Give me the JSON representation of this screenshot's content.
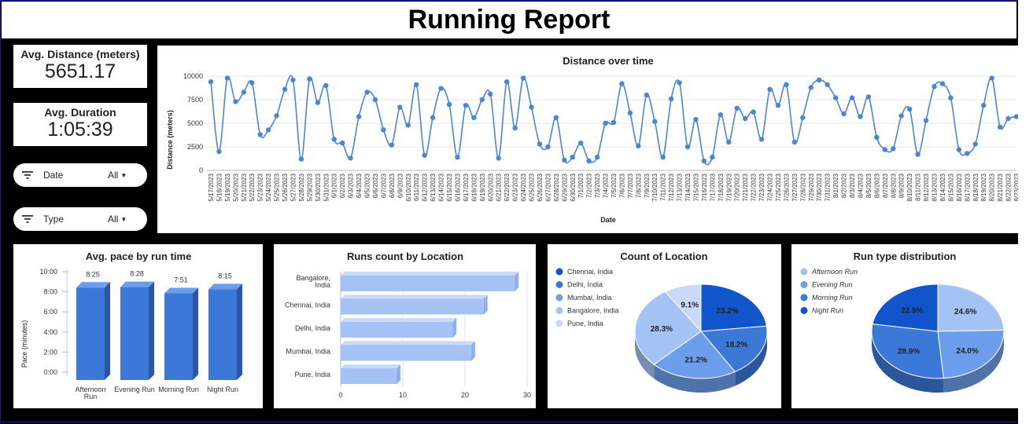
{
  "header": {
    "title": "Running Report"
  },
  "scorecards": [
    {
      "label": "Avg. Distance (meters)",
      "value": "5651.17"
    },
    {
      "label": "Avg. Duration",
      "value": "1:05:39"
    }
  ],
  "filters": [
    {
      "label": "Date",
      "value": "All"
    },
    {
      "label": "Type",
      "value": "All"
    }
  ],
  "colors": {
    "line": "#4a86d8",
    "bar_face": "#3b78d8",
    "bar_light": "#a4c2f4",
    "pie_palette": [
      "#1155cc",
      "#3c78d8",
      "#6d9eeb",
      "#a4c2f4",
      "#c9daf8"
    ]
  },
  "chart_data": [
    {
      "type": "line",
      "title": "Distance over time",
      "xlabel": "Date",
      "ylabel": "Distance (meters)",
      "ylim": [
        0,
        10000
      ],
      "yticks": [
        "0",
        "2500",
        "5000",
        "7500",
        "10000"
      ],
      "grid": true,
      "x_tick_labels": [
        "5/17/2023",
        "5/18/2023",
        "5/19/2023",
        "5/20/2023",
        "5/21/2023",
        "5/22/2023",
        "5/23/2023",
        "5/24/2023",
        "5/25/2023",
        "5/26/2023",
        "5/27/2023",
        "5/28/2023",
        "5/29/2023",
        "5/30/2023",
        "5/31/2023",
        "6/1/2023",
        "6/2/2023",
        "6/3/2023",
        "6/4/2023",
        "6/5/2023",
        "6/6/2023",
        "6/7/2023",
        "6/8/2023",
        "6/9/2023",
        "6/10/2023",
        "6/11/2023",
        "6/12/2023",
        "6/13/2023",
        "6/14/2023",
        "6/15/2023",
        "6/16/2023",
        "6/17/2023",
        "6/18/2023",
        "6/19/2023",
        "6/20/2023",
        "6/21/2023",
        "6/22/2023",
        "6/23/2023",
        "6/24/2023",
        "6/25/2023",
        "6/26/2023",
        "6/27/2023",
        "6/28/2023",
        "6/29/2023",
        "6/30/2023",
        "7/1/2023",
        "7/2/2023",
        "7/3/2023",
        "7/4/2023",
        "7/5/2023",
        "7/6/2023",
        "7/7/2023",
        "7/8/2023",
        "7/9/2023",
        "7/10/2023",
        "7/11/2023",
        "7/12/2023",
        "7/13/2023",
        "7/14/2023",
        "7/15/2023",
        "7/16/2023",
        "7/17/2023",
        "7/18/2023",
        "7/19/2023",
        "7/20/2023",
        "7/21/2023",
        "7/22/2023",
        "7/23/2023",
        "7/24/2023",
        "7/25/2023",
        "7/26/2023",
        "7/27/2023",
        "7/28/2023",
        "7/29/2023",
        "7/30/2023",
        "7/31/2023",
        "8/1/2023",
        "8/2/2023",
        "8/3/2023",
        "8/4/2023",
        "8/5/2023",
        "8/6/2023",
        "8/7/2023",
        "8/8/2023",
        "8/9/2023",
        "8/10/2023",
        "8/11/2023",
        "8/12/2023",
        "8/13/2023",
        "8/14/2023",
        "8/15/2023",
        "8/16/2023",
        "8/17/2023",
        "8/18/2023",
        "8/19/2023",
        "8/20/2023",
        "8/21/2023",
        "8/22/2023",
        "8/23/2023"
      ],
      "values": [
        9400,
        2000,
        9800,
        7300,
        8300,
        9300,
        3800,
        4300,
        5800,
        8600,
        9600,
        1200,
        9700,
        7200,
        9000,
        3300,
        2900,
        1300,
        5700,
        8300,
        7500,
        4300,
        2700,
        6700,
        4800,
        9100,
        1600,
        5600,
        8700,
        7000,
        1400,
        6900,
        5600,
        7500,
        8100,
        1300,
        9400,
        4500,
        9800,
        6700,
        2800,
        2500,
        5600,
        1100,
        1400,
        2900,
        1000,
        1400,
        5000,
        5100,
        9200,
        6100,
        2600,
        8000,
        5200,
        1400,
        7600,
        9300,
        2500,
        5400,
        1000,
        1400,
        5900,
        3000,
        6600,
        5500,
        6200,
        3300,
        8600,
        6900,
        9100,
        3000,
        5600,
        8800,
        9600,
        9100,
        7700,
        6000,
        7700,
        5700,
        7800,
        3500,
        2200,
        2300,
        5800,
        6500,
        1700,
        5300,
        8900,
        9200,
        7700,
        2200,
        1800,
        2800,
        6900,
        9800,
        4600,
        5500,
        5700
      ]
    },
    {
      "type": "bar",
      "title": "Avg. pace by run time",
      "ylabel": "Pace (minutes)",
      "yticks": [
        "0:00",
        "2:00",
        "4:00",
        "6:00",
        "8:00",
        "10:00"
      ],
      "ylim": [
        0,
        10
      ],
      "categories": [
        "Afternoon Run",
        "Evening Run",
        "Morning Run",
        "Night Run"
      ],
      "values": [
        8.4167,
        8.4667,
        7.85,
        8.25
      ],
      "data_labels": [
        "8:25",
        "8:28",
        "7:51",
        "8:15"
      ]
    },
    {
      "type": "bar",
      "orientation": "horizontal",
      "title": "Runs count by Location",
      "categories": [
        "Bangalore, India",
        "Chennai, India",
        "Delhi, India",
        "Mumbai, India",
        "Pune, India"
      ],
      "values": [
        28,
        23,
        18,
        21,
        9
      ],
      "xlim": [
        0,
        30
      ],
      "xticks": [
        "0",
        "10",
        "20",
        "30"
      ]
    },
    {
      "type": "pie",
      "title": "Count of Location",
      "legend_position": "top-left",
      "labels": [
        "Chennai, India",
        "Delhi, India",
        "Mumbai, India",
        "Bangalore, India",
        "Pune, India"
      ],
      "values": [
        23.2,
        18.2,
        21.2,
        28.3,
        9.1
      ],
      "value_labels": [
        "23.2%",
        "18.2%",
        "21.2%",
        "28.3%",
        "9.1%"
      ]
    },
    {
      "type": "pie",
      "title": "Run type distribution",
      "legend_position": "top-left",
      "labels": [
        "Afternoon Run",
        "Evening Run",
        "Morning Run",
        "Night Run"
      ],
      "values": [
        24.6,
        24.0,
        28.9,
        22.5
      ],
      "value_labels": [
        "24.6%",
        "24.0%",
        "28.9%",
        "22.5%"
      ]
    }
  ]
}
